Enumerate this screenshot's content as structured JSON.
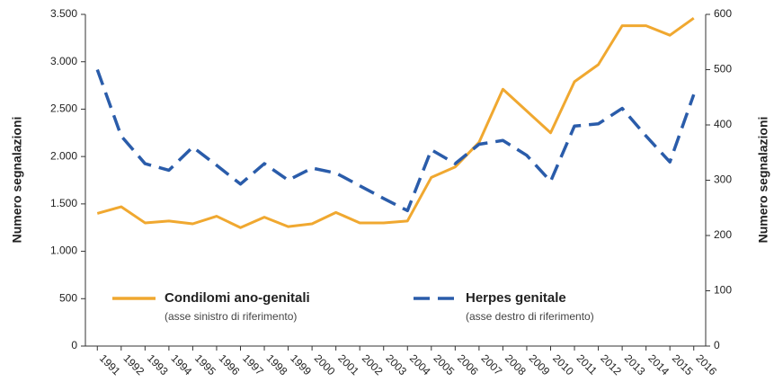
{
  "chart_data": {
    "type": "line",
    "ylabel": "Numero segnalazioni",
    "y2label": "Numero segnalazioni",
    "categories": [
      "1991",
      "1992",
      "1993",
      "1994",
      "1995",
      "1996",
      "1997",
      "1998",
      "1999",
      "2000",
      "2001",
      "2002",
      "2003",
      "2004",
      "2005",
      "2006",
      "2007",
      "2008",
      "2009",
      "2010",
      "2011",
      "2012",
      "2013",
      "2014",
      "2015",
      "2016"
    ],
    "series": [
      {
        "name": "Condilomi ano-genitali",
        "legend_note": "(asse sinistro di riferimento)",
        "color": "#f0a830",
        "axis": "y",
        "values": [
          1400,
          1470,
          1300,
          1320,
          1290,
          1370,
          1250,
          1360,
          1260,
          1290,
          1410,
          1300,
          1300,
          1320,
          1780,
          1890,
          2150,
          2710,
          2480,
          2250,
          2790,
          2970,
          3380,
          3380,
          3280,
          3460
        ]
      },
      {
        "name": "Herpes genitale",
        "legend_note": "(asse destro di riferimento)",
        "color": "#2a5caa",
        "axis": "y2",
        "dashed": true,
        "values": [
          500,
          380,
          330,
          318,
          360,
          327,
          293,
          330,
          300,
          322,
          313,
          290,
          267,
          245,
          355,
          330,
          365,
          372,
          345,
          298,
          398,
          402,
          430,
          380,
          333,
          455
        ]
      }
    ],
    "ylim": [
      0,
      3500
    ],
    "yticks": [
      0,
      500,
      {
        "value": 1000,
        "label": "1.000"
      },
      {
        "value": 1500,
        "label": "1.500"
      },
      {
        "value": 2000,
        "label": "2.000"
      },
      {
        "value": 2500,
        "label": "2.500"
      },
      {
        "value": 3000,
        "label": "3.000"
      },
      {
        "value": 3500,
        "label": "3.500"
      }
    ],
    "y2lim": [
      0,
      600
    ],
    "y2ticks": [
      0,
      100,
      200,
      300,
      400,
      500,
      600
    ]
  }
}
